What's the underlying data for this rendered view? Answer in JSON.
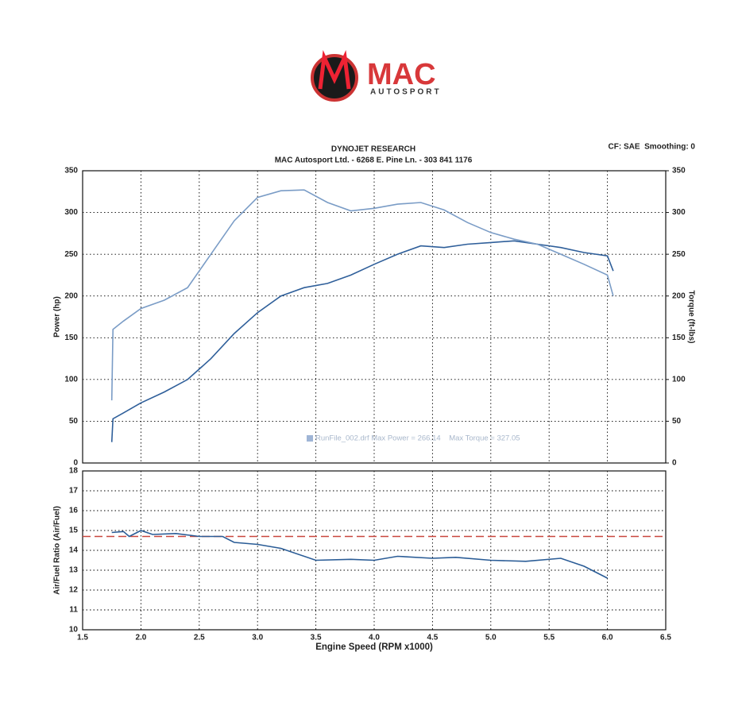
{
  "header": {
    "logo": "MAC",
    "tagline": "AUTOSPORT",
    "title": "DYNOJET RESEARCH",
    "subtitle": "MAC Autosport Ltd. - 6268 E. Pine Ln. - 303 841 1176",
    "settings": "CF: SAE  Smoothing: 0"
  },
  "chart_data": [
    {
      "type": "line",
      "ylabel": "Power (hp)",
      "y2label": "Torque (ft-lbs)",
      "annotation": "RunFile_002.drf Max Power = 266.14    Max Torque = 327.05",
      "x": [
        1.75,
        1.76,
        1.85,
        2.0,
        2.2,
        2.4,
        2.6,
        2.8,
        3.0,
        3.2,
        3.4,
        3.6,
        3.8,
        4.0,
        4.2,
        4.4,
        4.6,
        4.8,
        5.0,
        5.2,
        5.4,
        5.6,
        5.8,
        6.0,
        6.05
      ],
      "series": [
        {
          "color": "#2f5f9a",
          "values": [
            25,
            53,
            60,
            72,
            85,
            100,
            125,
            155,
            180,
            200,
            210,
            215,
            225,
            238,
            250,
            260,
            258,
            262,
            264,
            266,
            262,
            258,
            252,
            248,
            230
          ]
        },
        {
          "color": "#7a9cc6",
          "axis": "y2",
          "values": [
            75,
            160,
            170,
            185,
            195,
            210,
            250,
            290,
            318,
            326,
            327,
            312,
            302,
            305,
            310,
            312,
            303,
            288,
            276,
            268,
            262,
            250,
            238,
            225,
            200
          ]
        }
      ],
      "xlim": [
        1.5,
        6.5
      ],
      "xticks": [
        1.5,
        2,
        2.5,
        3,
        3.5,
        4,
        4.5,
        5,
        5.5,
        6,
        6.5
      ],
      "ylim": [
        0,
        350
      ],
      "yticks": [
        0,
        50,
        100,
        150,
        200,
        250,
        300,
        350
      ],
      "y2lim": [
        0,
        350
      ],
      "y2ticks": [
        0,
        50,
        100,
        150,
        200,
        250,
        300,
        350
      ],
      "grid": true
    },
    {
      "type": "line",
      "xlabel": "Engine Speed (RPM x1000)",
      "ylabel": "Air/Fuel Ratio (Air/Fuel)",
      "x": [
        1.75,
        1.85,
        1.9,
        2.0,
        2.1,
        2.3,
        2.5,
        2.7,
        2.8,
        3.0,
        3.2,
        3.5,
        3.8,
        4.0,
        4.2,
        4.5,
        4.7,
        5.0,
        5.3,
        5.6,
        5.8,
        6.0
      ],
      "series": [
        {
          "color": "#2a5c96",
          "values": [
            14.9,
            14.95,
            14.7,
            15.0,
            14.8,
            14.85,
            14.7,
            14.7,
            14.4,
            14.3,
            14.1,
            13.5,
            13.55,
            13.5,
            13.7,
            13.6,
            13.65,
            13.5,
            13.45,
            13.6,
            13.2,
            12.6
          ]
        }
      ],
      "reference_line": {
        "value": 14.7,
        "color": "#c9463d"
      },
      "xlim": [
        1.5,
        6.5
      ],
      "xticks": [
        1.5,
        {
          "value": 2,
          "label": "2.0"
        },
        2.5,
        {
          "value": 3,
          "label": "3.0"
        },
        3.5,
        {
          "value": 4,
          "label": "4.0"
        },
        4.5,
        {
          "value": 5,
          "label": "5.0"
        },
        5.5,
        {
          "value": 6,
          "label": "6.0"
        },
        6.5
      ],
      "ylim": [
        10,
        18
      ],
      "yticks": [
        10,
        11,
        12,
        13,
        14,
        15,
        16,
        17,
        18
      ],
      "grid": true
    }
  ]
}
